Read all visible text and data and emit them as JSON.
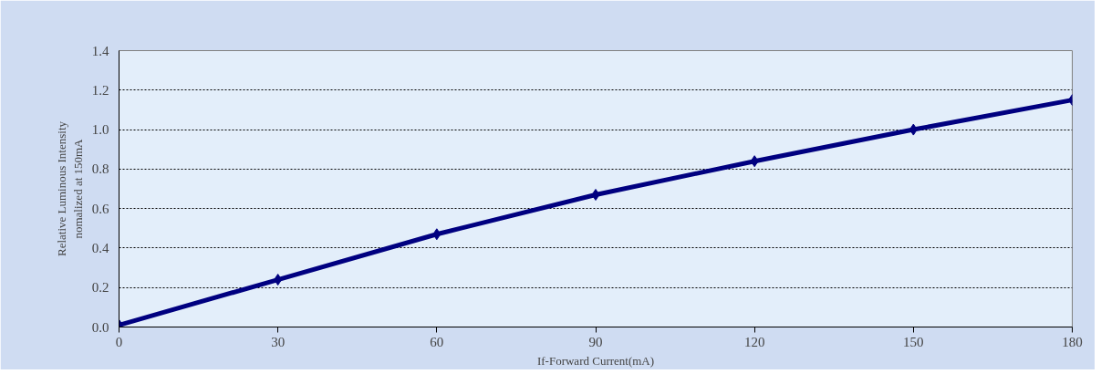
{
  "chart_data": {
    "type": "line",
    "xlabel": "If-Forward Current(mA)",
    "ylabel": "Relative Luminous Intensity\nnomalized at 150mA",
    "x": [
      0,
      30,
      60,
      90,
      120,
      150,
      180
    ],
    "series": [
      {
        "color": "#000080",
        "values": [
          0.01,
          0.24,
          0.47,
          0.67,
          0.84,
          1.0,
          1.15
        ]
      }
    ],
    "xlim": [
      0,
      180
    ],
    "xticks": [
      0,
      30,
      60,
      90,
      120,
      150,
      180
    ],
    "ylim": [
      0,
      1.4
    ],
    "yticks": [
      {
        "value": 0,
        "label": "0.0"
      },
      {
        "value": 0.2,
        "label": "0.2"
      },
      {
        "value": 0.4,
        "label": "0.4"
      },
      {
        "value": 0.6,
        "label": "0.6"
      },
      {
        "value": 0.8,
        "label": "0.8"
      },
      {
        "value": 1.0,
        "label": "1.0"
      },
      {
        "value": 1.2,
        "label": "1.2"
      },
      {
        "value": 1.4,
        "label": "1.4"
      }
    ],
    "grid": "y",
    "marker": "diamond",
    "line_style": "solid"
  }
}
